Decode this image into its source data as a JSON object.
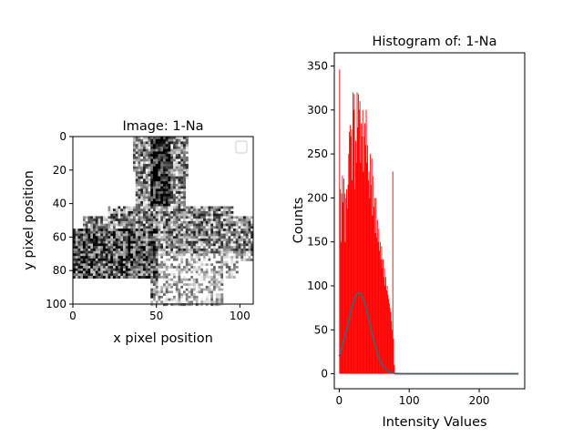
{
  "chart_data": [
    {
      "type": "heatmap",
      "title": "Image: 1-Na",
      "xlabel": "x pixel position",
      "ylabel": "y pixel position",
      "xlim": [
        0,
        108
      ],
      "ylim": [
        100,
        0
      ],
      "x_ticks": [
        0,
        50,
        100
      ],
      "y_ticks": [
        0,
        20,
        40,
        60,
        80,
        100
      ],
      "colormap": "grayscale",
      "legend": "empty legend box, top-right"
    },
    {
      "type": "bar",
      "title": "Histogram of: 1-Na",
      "xlabel": "Intensity Values",
      "ylabel": "Counts",
      "xlim": [
        -7,
        265
      ],
      "ylim": [
        -17,
        365
      ],
      "x_ticks": [
        0,
        100,
        200
      ],
      "y_ticks": [
        0,
        50,
        100,
        150,
        200,
        250,
        300,
        350
      ],
      "bar_color": "#ff0000",
      "fit_color": "#4f5f66",
      "histogram": {
        "x": [
          0,
          1,
          2,
          3,
          4,
          5,
          6,
          7,
          8,
          9,
          10,
          11,
          12,
          13,
          14,
          15,
          16,
          17,
          18,
          19,
          20,
          21,
          22,
          23,
          24,
          25,
          26,
          27,
          28,
          29,
          30,
          31,
          32,
          33,
          34,
          35,
          36,
          37,
          38,
          39,
          40,
          41,
          42,
          43,
          44,
          45,
          46,
          47,
          48,
          49,
          50,
          51,
          52,
          53,
          54,
          55,
          56,
          57,
          58,
          59,
          60,
          61,
          62,
          63,
          64,
          65,
          66,
          67,
          68,
          69,
          70,
          71,
          72,
          73,
          74,
          75,
          76,
          77,
          78
        ],
        "counts": [
          346,
          210,
          150,
          205,
          225,
          195,
          222,
          205,
          150,
          200,
          210,
          188,
          215,
          250,
          275,
          283,
          270,
          278,
          220,
          320,
          300,
          318,
          210,
          265,
          240,
          320,
          280,
          318,
          300,
          310,
          240,
          285,
          270,
          300,
          230,
          270,
          285,
          260,
          300,
          240,
          260,
          220,
          230,
          200,
          250,
          215,
          245,
          180,
          225,
          190,
          200,
          160,
          200,
          155,
          175,
          150,
          165,
          140,
          150,
          130,
          145,
          120,
          130,
          110,
          120,
          100,
          110,
          95,
          100,
          90,
          85,
          80,
          75,
          70,
          60,
          50,
          230,
          40,
          10
        ]
      },
      "fit": {
        "type": "gaussian",
        "amplitude": 92,
        "mean": 28,
        "sigma": 16,
        "offset": 0,
        "x_range": [
          0,
          256
        ]
      }
    }
  ]
}
